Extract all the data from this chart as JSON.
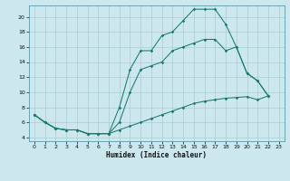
{
  "xlabel": "Humidex (Indice chaleur)",
  "bg_color": "#cce8ee",
  "grid_color": "#aacccc",
  "line_color": "#1a7a6e",
  "line1_y": [
    7.0,
    6.0,
    5.2,
    5.0,
    5.0,
    4.5,
    4.5,
    4.5,
    8.0,
    13.0,
    15.5,
    15.5,
    17.5,
    18.0,
    19.5,
    21.0,
    21.0,
    21.0,
    19.0,
    16.0,
    12.5,
    11.5,
    9.5
  ],
  "line2_y": [
    7.0,
    6.0,
    5.2,
    5.0,
    5.0,
    4.5,
    4.5,
    4.5,
    6.0,
    10.0,
    13.0,
    13.5,
    14.0,
    15.5,
    16.0,
    16.5,
    17.0,
    17.0,
    15.5,
    16.0,
    12.5,
    11.5,
    9.5
  ],
  "line3_y": [
    7.0,
    6.0,
    5.2,
    5.0,
    5.0,
    4.5,
    4.5,
    4.5,
    5.0,
    5.5,
    6.0,
    6.5,
    7.0,
    7.5,
    8.0,
    8.5,
    8.8,
    9.0,
    9.2,
    9.3,
    9.4,
    9.0,
    9.5
  ],
  "xlim": [
    -0.5,
    23.5
  ],
  "ylim": [
    3.5,
    21.5
  ],
  "yticks": [
    4,
    6,
    8,
    10,
    12,
    14,
    16,
    18,
    20
  ],
  "xticks": [
    0,
    1,
    2,
    3,
    4,
    5,
    6,
    7,
    8,
    9,
    10,
    11,
    12,
    13,
    14,
    15,
    16,
    17,
    18,
    19,
    20,
    21,
    22,
    23
  ]
}
